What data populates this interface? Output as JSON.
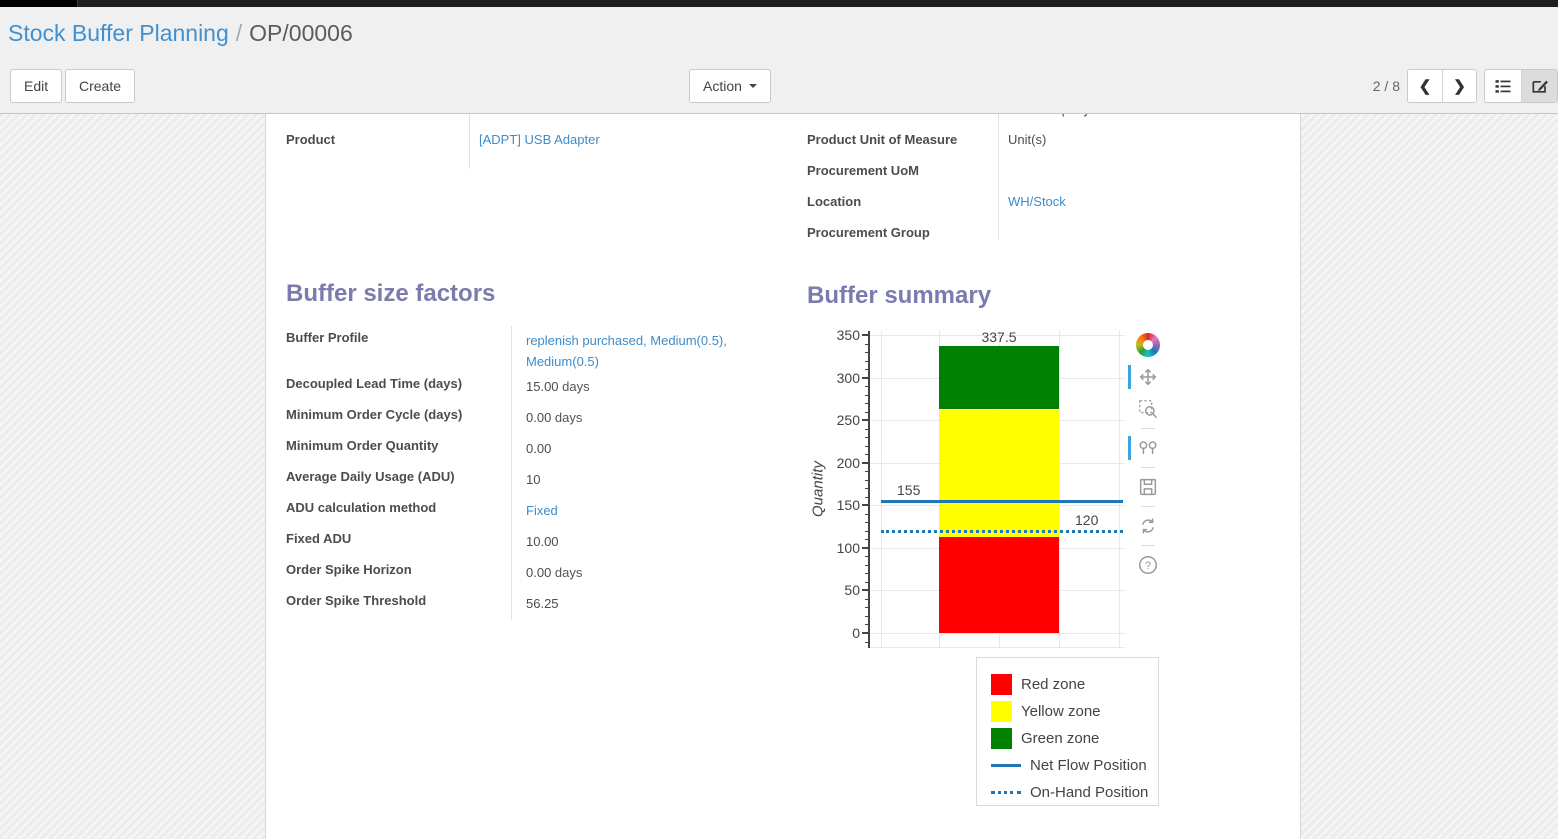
{
  "breadcrumb": {
    "parent": "Stock Buffer Planning",
    "separator": "/",
    "current": "OP/00006"
  },
  "toolbar": {
    "edit_label": "Edit",
    "create_label": "Create",
    "action_label": "Action",
    "pager": "2 / 8"
  },
  "form": {
    "info_left": [
      {
        "label": "Product",
        "value": "[ADPT] USB Adapter",
        "link": true
      }
    ],
    "info_right": [
      {
        "label": "Product Unit of Measure",
        "value": "Unit(s)",
        "link": false
      },
      {
        "label": "Procurement UoM",
        "value": "",
        "link": false
      },
      {
        "label": "Location",
        "value": "WH/Stock",
        "link": true
      },
      {
        "label": "Procurement Group",
        "value": "",
        "link": false
      }
    ],
    "clipped_value_fragment": "YourCompany",
    "factors_title": "Buffer size factors",
    "summary_title": "Buffer summary",
    "factors": [
      {
        "label": "Buffer Profile",
        "value": "replenish purchased, Medium(0.5), Medium(0.5)",
        "link": true
      },
      {
        "label": "Decoupled Lead Time (days)",
        "value": "15.00",
        "unit": "days"
      },
      {
        "label": "Minimum Order Cycle (days)",
        "value": "0.00",
        "unit": "days"
      },
      {
        "label": "Minimum Order Quantity",
        "value": "0.00"
      },
      {
        "label": "Average Daily Usage (ADU)",
        "value": "10"
      },
      {
        "label": "ADU calculation method",
        "value": "Fixed",
        "link": true
      },
      {
        "label": "Fixed ADU",
        "value": "10.00"
      },
      {
        "label": "Order Spike Horizon",
        "value": "0.00",
        "unit": "days"
      },
      {
        "label": "Order Spike Threshold",
        "value": "56.25"
      }
    ]
  },
  "chart_data": {
    "type": "bar",
    "title": "Buffer summary",
    "xlabel": "",
    "ylabel": "Quantity",
    "ylim": [
      0,
      350
    ],
    "ytick_major": 50,
    "ytick_minor": 10,
    "grid": true,
    "zones": [
      {
        "name": "Red zone",
        "from": 0,
        "to": 112.5,
        "color": "#ff0000",
        "label": "112.5"
      },
      {
        "name": "Yellow zone",
        "from": 112.5,
        "to": 262.5,
        "color": "#ffff00",
        "label": "262.5"
      },
      {
        "name": "Green zone",
        "from": 262.5,
        "to": 337.5,
        "color": "#008000",
        "label": "337.5"
      }
    ],
    "lines": [
      {
        "name": "Net Flow Position",
        "value": 155,
        "style": "solid",
        "color": "#1f77b4",
        "label": "155",
        "label_side": "left"
      },
      {
        "name": "On-Hand Position",
        "value": 120,
        "style": "dotted",
        "color": "#1f77b4",
        "label": "120",
        "label_side": "right"
      }
    ],
    "legend": [
      {
        "label": "Red zone",
        "swatch": "square",
        "color": "#ff0000"
      },
      {
        "label": "Yellow zone",
        "swatch": "square",
        "color": "#ffff00"
      },
      {
        "label": "Green zone",
        "swatch": "square",
        "color": "#008000"
      },
      {
        "label": "Net Flow Position",
        "swatch": "line",
        "color": "#1f77b4"
      },
      {
        "label": "On-Hand Position",
        "swatch": "dotted",
        "color": "#1f77b4"
      }
    ],
    "legend_position": "below-right"
  },
  "chart_toolbar": {
    "icons": [
      "plotly-logo",
      "pan",
      "box-zoom",
      "hover-compare",
      "save",
      "reset-axes",
      "help"
    ],
    "active": [
      "pan",
      "hover-compare"
    ]
  }
}
